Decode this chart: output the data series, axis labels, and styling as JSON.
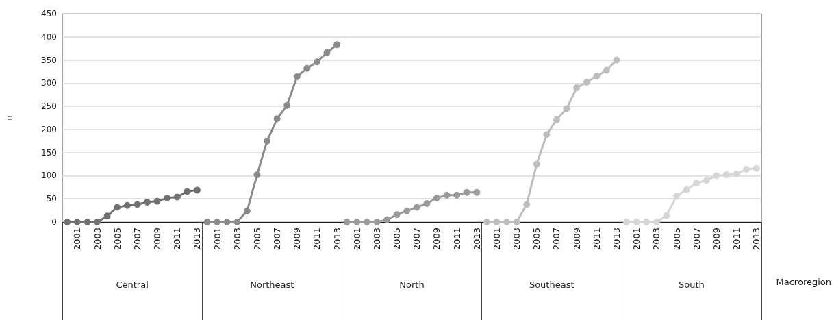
{
  "chart_data": {
    "type": "line",
    "xlabel": "Macroregion",
    "ylabel": "n",
    "annotations": [
      "Central",
      "Northeast",
      "North",
      "Southeast",
      "South"
    ],
    "categories": [
      null,
      "2001",
      null,
      "2003",
      null,
      "2005",
      null,
      "2007",
      null,
      "2009",
      null,
      "2011",
      null,
      "2013",
      null,
      "2001",
      null,
      "2003",
      null,
      "2005",
      null,
      "2007",
      null,
      "2009",
      null,
      "2011",
      null,
      "2013",
      null,
      "2001",
      null,
      "2003",
      null,
      "2005",
      null,
      "2007",
      null,
      "2009",
      null,
      "2011",
      null,
      "2013",
      null,
      "2001",
      null,
      "2003",
      null,
      "2005",
      null,
      "2007",
      null,
      "2009",
      null,
      "2011",
      null,
      "2013",
      null,
      "2001",
      null,
      "2003",
      null,
      "2005",
      null,
      "2007",
      null,
      "2009",
      null,
      "2011",
      null,
      "2013"
    ],
    "series": [
      {
        "color": "#707070",
        "values": [
          0,
          0,
          0,
          0,
          13,
          32,
          36,
          38,
          43,
          45,
          52,
          54,
          66,
          69,
          null,
          null,
          null,
          null,
          null,
          null,
          null,
          null,
          null,
          null,
          null,
          null,
          null,
          null,
          null,
          null,
          null,
          null,
          null,
          null,
          null,
          null,
          null,
          null,
          null,
          null,
          null,
          null,
          null,
          null,
          null,
          null,
          null,
          null,
          null,
          null,
          null,
          null,
          null,
          null,
          null,
          null,
          null,
          null,
          null,
          null,
          null,
          null,
          null,
          null,
          null,
          null,
          null,
          null,
          null,
          null
        ]
      },
      {
        "color": "#8a8a8a",
        "values": [
          null,
          null,
          null,
          null,
          null,
          null,
          null,
          null,
          null,
          null,
          null,
          null,
          null,
          null,
          0,
          0,
          0,
          0,
          24,
          102,
          175,
          223,
          252,
          314,
          332,
          346,
          366,
          383,
          null,
          null,
          null,
          null,
          null,
          null,
          null,
          null,
          null,
          null,
          null,
          null,
          null,
          null,
          null,
          null,
          null,
          null,
          null,
          null,
          null,
          null,
          null,
          null,
          null,
          null,
          null,
          null,
          null,
          null,
          null,
          null,
          null,
          null,
          null,
          null,
          null,
          null,
          null,
          null,
          null,
          null
        ]
      },
      {
        "color": "#9a9a9a",
        "values": [
          null,
          null,
          null,
          null,
          null,
          null,
          null,
          null,
          null,
          null,
          null,
          null,
          null,
          null,
          null,
          null,
          null,
          null,
          null,
          null,
          null,
          null,
          null,
          null,
          null,
          null,
          null,
          null,
          0,
          0,
          0,
          0,
          5,
          16,
          24,
          32,
          40,
          52,
          58,
          58,
          64,
          64,
          null,
          null,
          null,
          null,
          null,
          null,
          null,
          null,
          null,
          null,
          null,
          null,
          null,
          null,
          null,
          null,
          null,
          null,
          null,
          null,
          null,
          null,
          null,
          null,
          null,
          null,
          null,
          null
        ]
      },
      {
        "color": "#bdbdbd",
        "values": [
          null,
          null,
          null,
          null,
          null,
          null,
          null,
          null,
          null,
          null,
          null,
          null,
          null,
          null,
          null,
          null,
          null,
          null,
          null,
          null,
          null,
          null,
          null,
          null,
          null,
          null,
          null,
          null,
          null,
          null,
          null,
          null,
          null,
          null,
          null,
          null,
          null,
          null,
          null,
          null,
          null,
          null,
          0,
          0,
          0,
          0,
          38,
          125,
          189,
          221,
          245,
          290,
          302,
          315,
          328,
          350,
          null,
          null,
          null,
          null,
          null,
          null,
          null,
          null,
          null,
          null,
          null,
          null,
          null,
          null
        ]
      },
      {
        "color": "#d6d6d6",
        "values": [
          null,
          null,
          null,
          null,
          null,
          null,
          null,
          null,
          null,
          null,
          null,
          null,
          null,
          null,
          null,
          null,
          null,
          null,
          null,
          null,
          null,
          null,
          null,
          null,
          null,
          null,
          null,
          null,
          null,
          null,
          null,
          null,
          null,
          null,
          null,
          null,
          null,
          null,
          null,
          null,
          null,
          null,
          null,
          null,
          null,
          null,
          null,
          null,
          null,
          null,
          null,
          null,
          null,
          null,
          null,
          null,
          0,
          0,
          0,
          0,
          14,
          56,
          70,
          84,
          90,
          100,
          102,
          104,
          114,
          116
        ]
      }
    ],
    "ylim": [
      0,
      450
    ],
    "yticks": [
      0,
      50,
      100,
      150,
      200,
      250,
      300,
      350,
      400,
      450
    ],
    "grid": "y",
    "marker": "circle",
    "line_style": "solid"
  }
}
